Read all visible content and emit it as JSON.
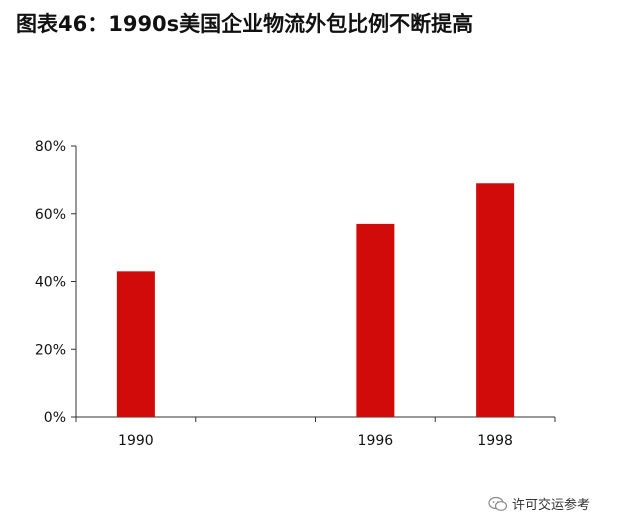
{
  "title": "图表46：1990s美国企业物流外包比例不断提高",
  "watermark": {
    "text": "许可交运参考",
    "icon": "wechat-icon"
  },
  "colors": {
    "bar": "#D10A0A",
    "axis": "#333333",
    "text": "#111111"
  },
  "chart_data": {
    "type": "bar",
    "categories": [
      "1990",
      "",
      "1996",
      "1998"
    ],
    "values": [
      43,
      null,
      57,
      69
    ],
    "ylim": [
      0,
      80
    ],
    "yticks": [
      0,
      20,
      40,
      60,
      80
    ],
    "ytick_labels": [
      "0%",
      "20%",
      "40%",
      "60%",
      "80%"
    ],
    "xlabel": "",
    "ylabel": "",
    "grid": false,
    "legend": false
  }
}
